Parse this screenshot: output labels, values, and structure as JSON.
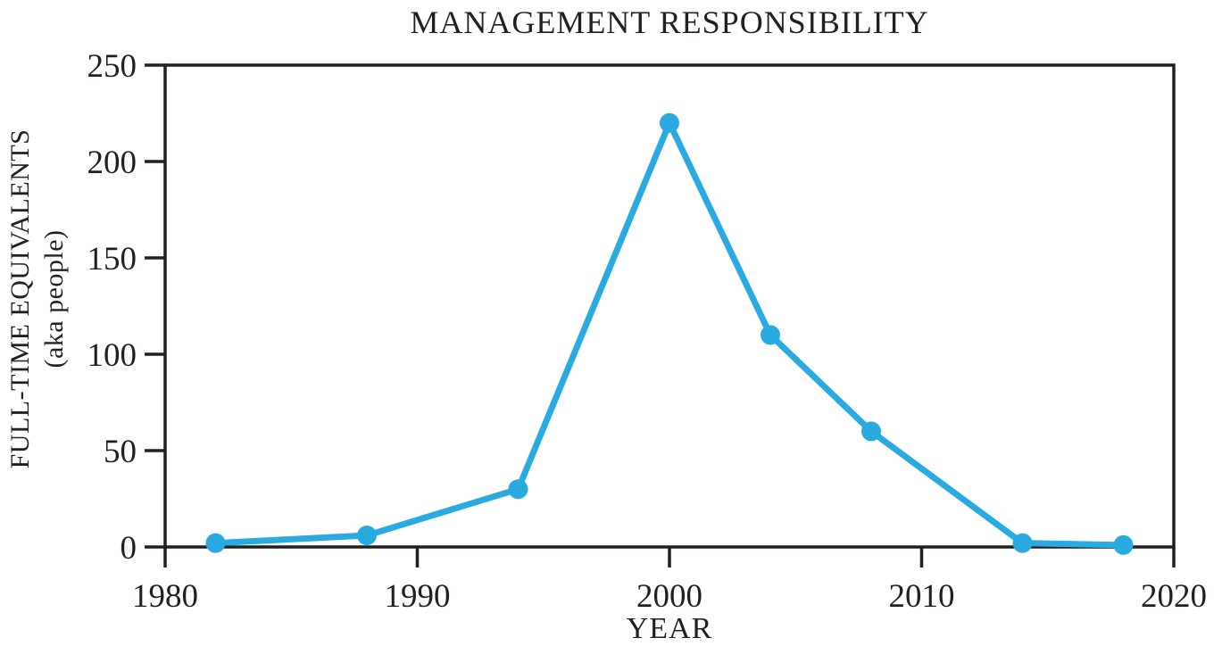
{
  "colors": {
    "line": "#29abe2",
    "marker": "#29abe2",
    "axis": "#231f20",
    "text": "#231f20",
    "background": "#ffffff"
  },
  "chart_data": {
    "type": "line",
    "title": "MANAGEMENT RESPONSIBILITY",
    "xlabel": "YEAR",
    "ylabel": "FULL-TIME EQUIVALENTS (aka people)",
    "ylabel_lines": [
      "FULL-TIME EQUIVALENTS",
      "(aka people)"
    ],
    "series": [
      {
        "name": "full-time-equivalents",
        "x": [
          1982,
          1988,
          1994,
          2000,
          2004,
          2008,
          2014,
          2018
        ],
        "y": [
          2,
          6,
          30,
          220,
          110,
          60,
          2,
          1
        ]
      }
    ],
    "xlim": [
      1980,
      2020
    ],
    "ylim": [
      0,
      250
    ],
    "x_ticks": [
      1980,
      1990,
      2000,
      2010,
      2020
    ],
    "y_ticks": [
      0,
      50,
      100,
      150,
      200,
      250
    ],
    "grid": false,
    "legend": false,
    "marker_style": "filled-circle"
  }
}
